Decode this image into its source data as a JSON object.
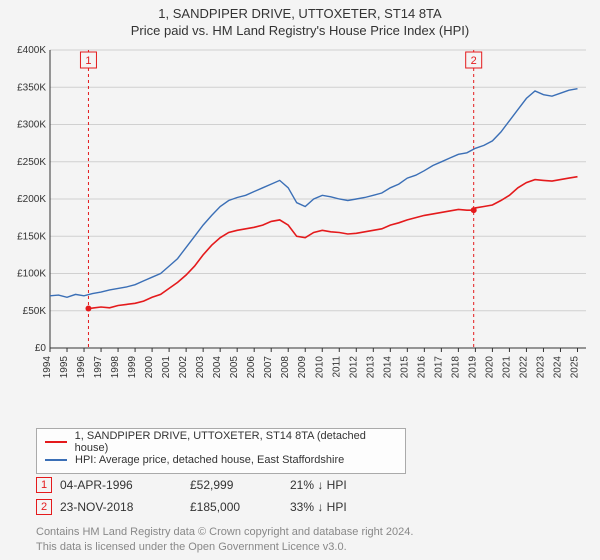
{
  "title_line1": "1, SANDPIPER DRIVE, UTTOXETER, ST14 8TA",
  "title_line2": "Price paid vs. HM Land Registry's House Price Index (HPI)",
  "chart": {
    "type": "line",
    "background_color": "#f4f4f4",
    "grid_color": "#d0d0d0",
    "axis_color": "#333333",
    "tick_fontsize": 10,
    "tick_color": "#333333",
    "x": {
      "min": 1994,
      "max": 2025.5,
      "ticks": [
        1994,
        1995,
        1996,
        1997,
        1998,
        1999,
        2000,
        2001,
        2002,
        2003,
        2004,
        2005,
        2006,
        2007,
        2008,
        2009,
        2010,
        2011,
        2012,
        2013,
        2014,
        2015,
        2016,
        2017,
        2018,
        2019,
        2020,
        2021,
        2022,
        2023,
        2024,
        2025
      ]
    },
    "y": {
      "min": 0,
      "max": 400000,
      "ticks": [
        0,
        50000,
        100000,
        150000,
        200000,
        250000,
        300000,
        350000,
        400000
      ],
      "tick_labels": [
        "£0",
        "£50K",
        "£100K",
        "£150K",
        "£200K",
        "£250K",
        "£300K",
        "£350K",
        "£400K"
      ]
    },
    "series": [
      {
        "name": "1, SANDPIPER DRIVE, UTTOXETER, ST14 8TA (detached house)",
        "color": "#e41a1c",
        "width": 1.6,
        "data": [
          [
            1996.26,
            52999
          ],
          [
            1996.5,
            53500
          ],
          [
            1997,
            55000
          ],
          [
            1997.5,
            54000
          ],
          [
            1998,
            57000
          ],
          [
            1998.5,
            58500
          ],
          [
            1999,
            60000
          ],
          [
            1999.5,
            63000
          ],
          [
            2000,
            68000
          ],
          [
            2000.5,
            72000
          ],
          [
            2001,
            80000
          ],
          [
            2001.5,
            88000
          ],
          [
            2002,
            98000
          ],
          [
            2002.5,
            110000
          ],
          [
            2003,
            125000
          ],
          [
            2003.5,
            138000
          ],
          [
            2004,
            148000
          ],
          [
            2004.5,
            155000
          ],
          [
            2005,
            158000
          ],
          [
            2005.5,
            160000
          ],
          [
            2006,
            162000
          ],
          [
            2006.5,
            165000
          ],
          [
            2007,
            170000
          ],
          [
            2007.5,
            172000
          ],
          [
            2008,
            165000
          ],
          [
            2008.5,
            150000
          ],
          [
            2009,
            148000
          ],
          [
            2009.5,
            155000
          ],
          [
            2010,
            158000
          ],
          [
            2010.5,
            156000
          ],
          [
            2011,
            155000
          ],
          [
            2011.5,
            153000
          ],
          [
            2012,
            154000
          ],
          [
            2012.5,
            156000
          ],
          [
            2013,
            158000
          ],
          [
            2013.5,
            160000
          ],
          [
            2014,
            165000
          ],
          [
            2014.5,
            168000
          ],
          [
            2015,
            172000
          ],
          [
            2015.5,
            175000
          ],
          [
            2016,
            178000
          ],
          [
            2016.5,
            180000
          ],
          [
            2017,
            182000
          ],
          [
            2017.5,
            184000
          ],
          [
            2018,
            186000
          ],
          [
            2018.5,
            185000
          ],
          [
            2018.9,
            185000
          ],
          [
            2019,
            188000
          ],
          [
            2019.5,
            190000
          ],
          [
            2020,
            192000
          ],
          [
            2020.5,
            198000
          ],
          [
            2021,
            205000
          ],
          [
            2021.5,
            215000
          ],
          [
            2022,
            222000
          ],
          [
            2022.5,
            226000
          ],
          [
            2023,
            225000
          ],
          [
            2023.5,
            224000
          ],
          [
            2024,
            226000
          ],
          [
            2024.5,
            228000
          ],
          [
            2025,
            230000
          ]
        ]
      },
      {
        "name": "HPI: Average price, detached house, East Staffordshire",
        "color": "#3b6fb6",
        "width": 1.4,
        "data": [
          [
            1994,
            70000
          ],
          [
            1994.5,
            71000
          ],
          [
            1995,
            68000
          ],
          [
            1995.5,
            72000
          ],
          [
            1996,
            70000
          ],
          [
            1996.5,
            73000
          ],
          [
            1997,
            75000
          ],
          [
            1997.5,
            78000
          ],
          [
            1998,
            80000
          ],
          [
            1998.5,
            82000
          ],
          [
            1999,
            85000
          ],
          [
            1999.5,
            90000
          ],
          [
            2000,
            95000
          ],
          [
            2000.5,
            100000
          ],
          [
            2001,
            110000
          ],
          [
            2001.5,
            120000
          ],
          [
            2002,
            135000
          ],
          [
            2002.5,
            150000
          ],
          [
            2003,
            165000
          ],
          [
            2003.5,
            178000
          ],
          [
            2004,
            190000
          ],
          [
            2004.5,
            198000
          ],
          [
            2005,
            202000
          ],
          [
            2005.5,
            205000
          ],
          [
            2006,
            210000
          ],
          [
            2006.5,
            215000
          ],
          [
            2007,
            220000
          ],
          [
            2007.5,
            225000
          ],
          [
            2008,
            215000
          ],
          [
            2008.5,
            195000
          ],
          [
            2009,
            190000
          ],
          [
            2009.5,
            200000
          ],
          [
            2010,
            205000
          ],
          [
            2010.5,
            203000
          ],
          [
            2011,
            200000
          ],
          [
            2011.5,
            198000
          ],
          [
            2012,
            200000
          ],
          [
            2012.5,
            202000
          ],
          [
            2013,
            205000
          ],
          [
            2013.5,
            208000
          ],
          [
            2014,
            215000
          ],
          [
            2014.5,
            220000
          ],
          [
            2015,
            228000
          ],
          [
            2015.5,
            232000
          ],
          [
            2016,
            238000
          ],
          [
            2016.5,
            245000
          ],
          [
            2017,
            250000
          ],
          [
            2017.5,
            255000
          ],
          [
            2018,
            260000
          ],
          [
            2018.5,
            262000
          ],
          [
            2019,
            268000
          ],
          [
            2019.5,
            272000
          ],
          [
            2020,
            278000
          ],
          [
            2020.5,
            290000
          ],
          [
            2021,
            305000
          ],
          [
            2021.5,
            320000
          ],
          [
            2022,
            335000
          ],
          [
            2022.5,
            345000
          ],
          [
            2023,
            340000
          ],
          [
            2023.5,
            338000
          ],
          [
            2024,
            342000
          ],
          [
            2024.5,
            346000
          ],
          [
            2025,
            348000
          ]
        ]
      }
    ],
    "sale_markers": [
      {
        "idx": "1",
        "x": 1996.26,
        "y": 52999,
        "color": "#e41a1c"
      },
      {
        "idx": "2",
        "x": 2018.9,
        "y": 185000,
        "color": "#e41a1c"
      }
    ]
  },
  "legend": {
    "items": [
      {
        "color": "#e41a1c",
        "label": "1, SANDPIPER DRIVE, UTTOXETER, ST14 8TA (detached house)"
      },
      {
        "color": "#3b6fb6",
        "label": "HPI: Average price, detached house, East Staffordshire"
      }
    ]
  },
  "sales": [
    {
      "idx": "1",
      "border": "#e41a1c",
      "date": "04-APR-1996",
      "price": "£52,999",
      "delta": "21% ↓ HPI"
    },
    {
      "idx": "2",
      "border": "#e41a1c",
      "date": "23-NOV-2018",
      "price": "£185,000",
      "delta": "33% ↓ HPI"
    }
  ],
  "footer": {
    "line1": "Contains HM Land Registry data © Crown copyright and database right 2024.",
    "line2": "This data is licensed under the Open Government Licence v3.0."
  }
}
